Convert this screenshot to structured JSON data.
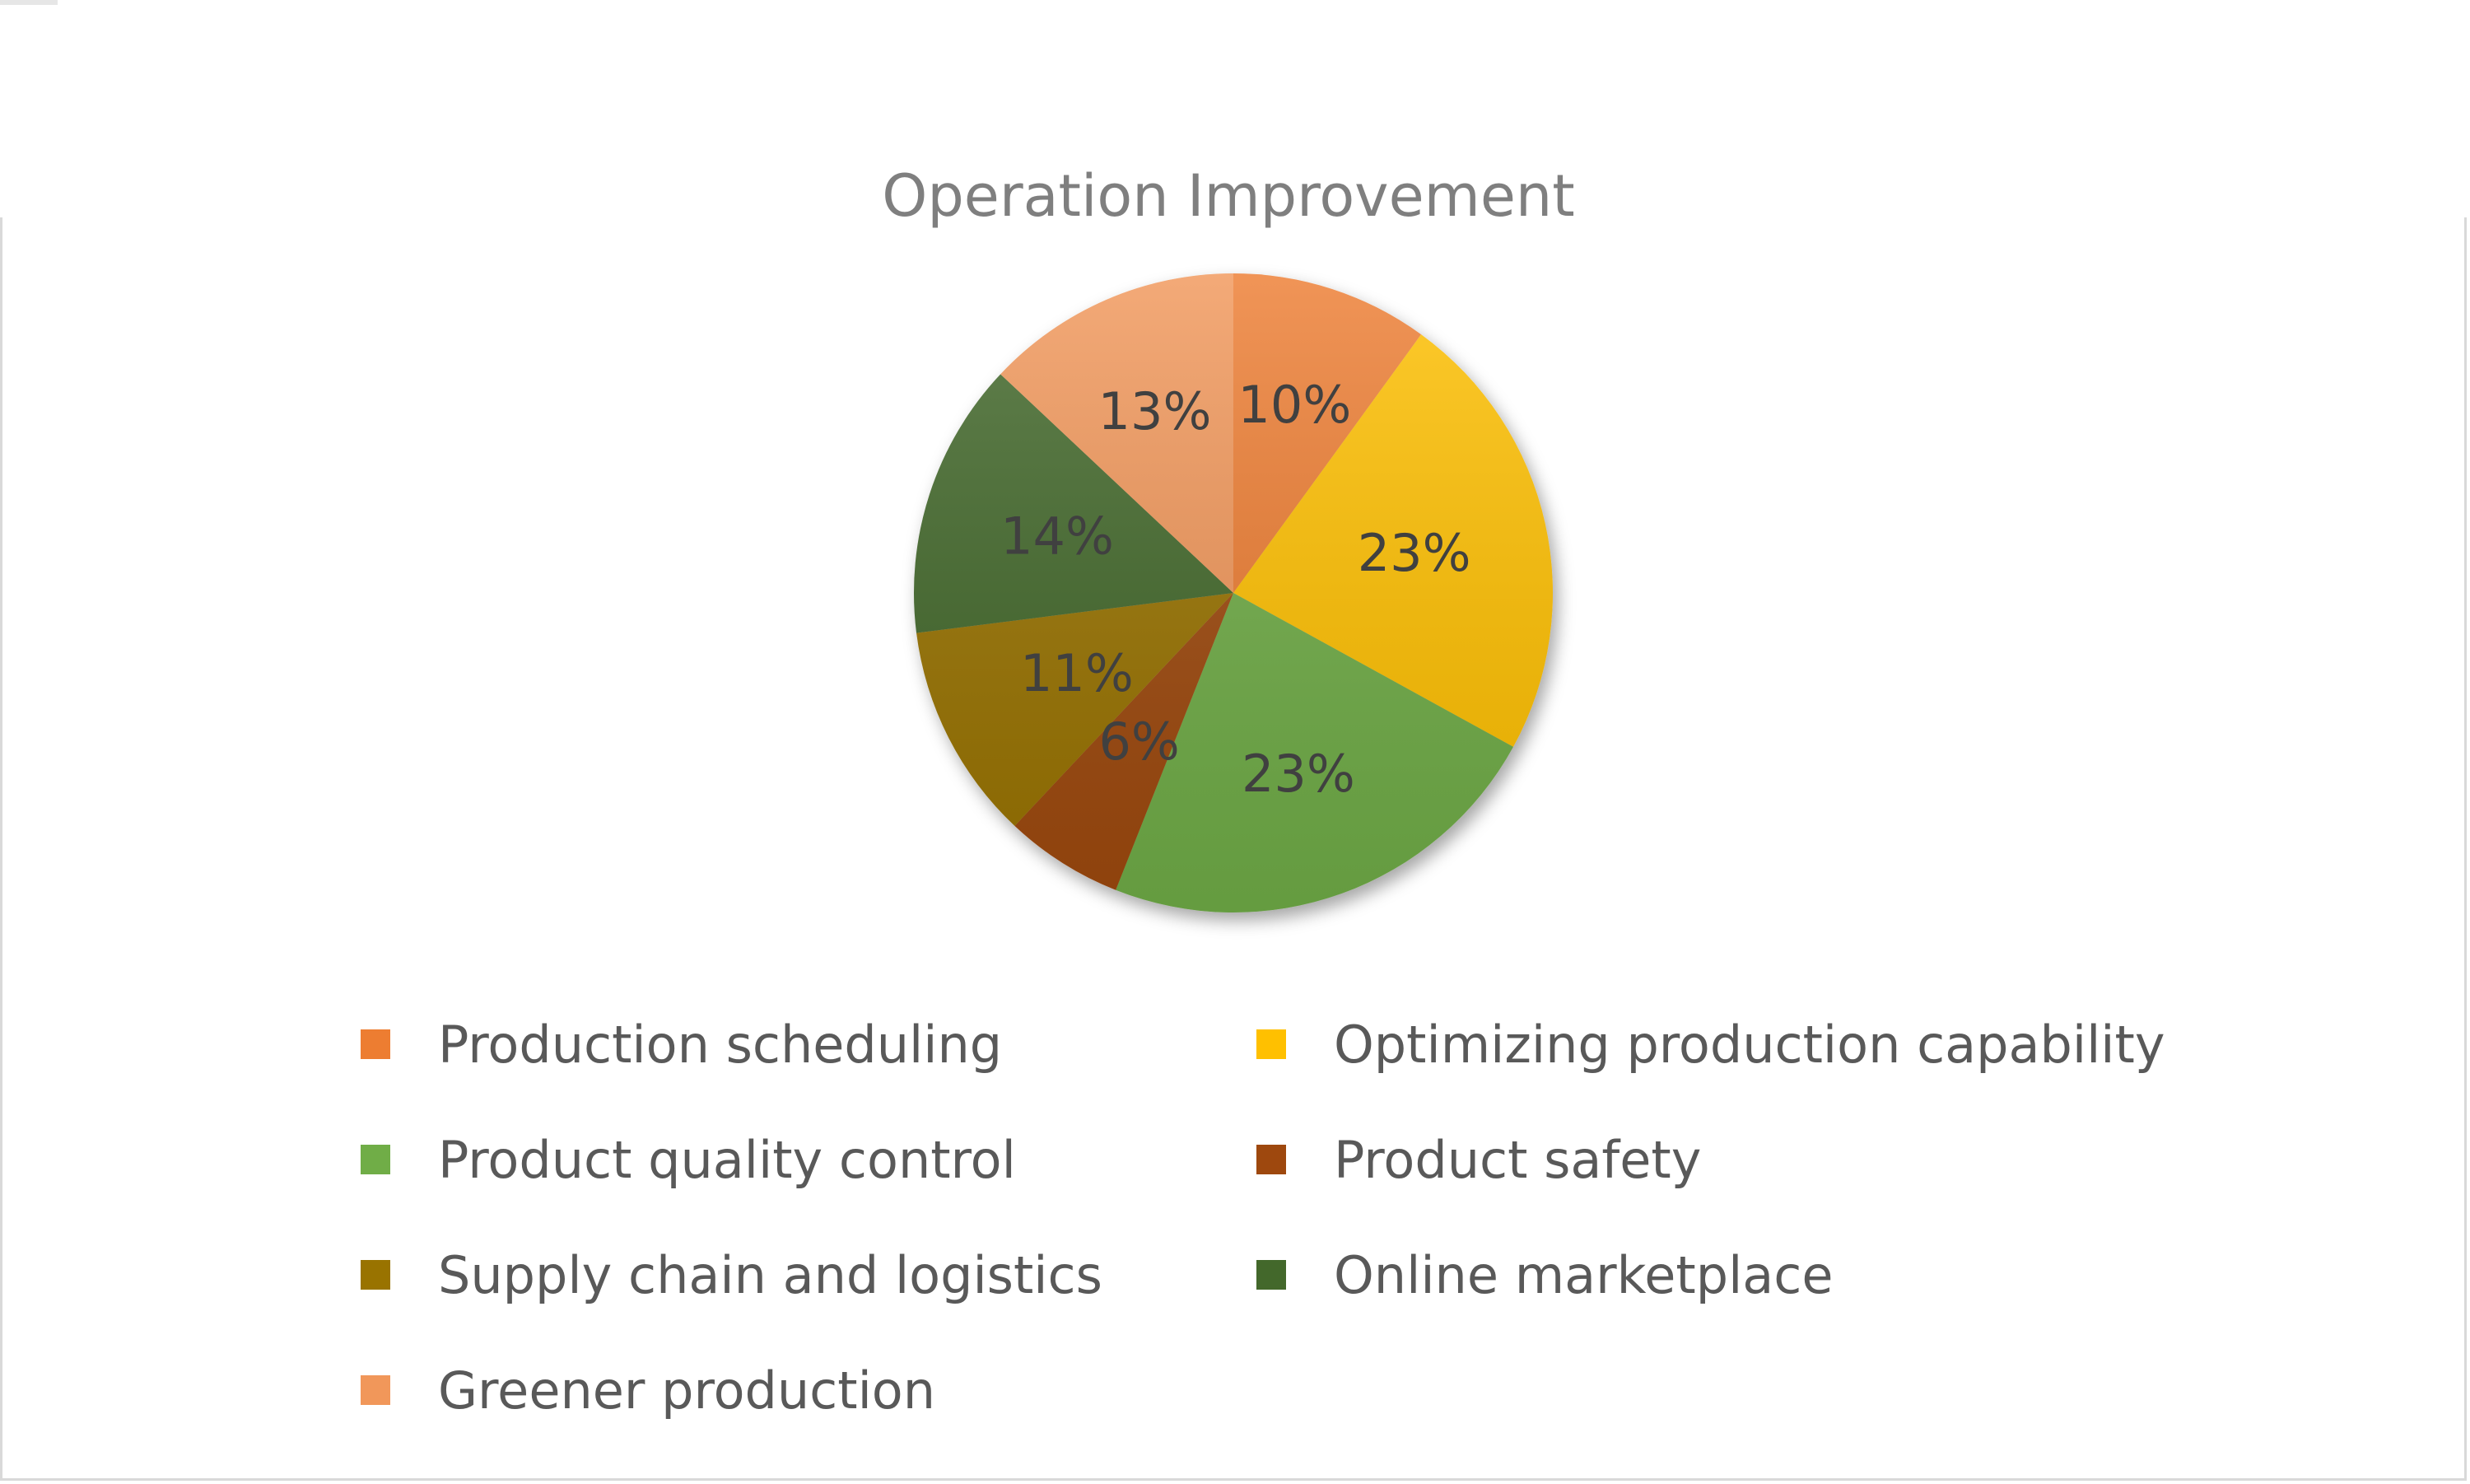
{
  "chart_data": {
    "type": "pie",
    "title": "Operation Improvement",
    "categories": [
      "Production scheduling",
      "Optimizing production capability",
      "Product quality control",
      "Product safety",
      "Supply chain and logistics",
      "Online marketplace",
      "Greener production"
    ],
    "values": [
      10,
      23,
      23,
      6,
      11,
      14,
      13
    ],
    "data_labels": [
      "10%",
      "23%",
      "23%",
      "6%",
      "11%",
      "14%",
      "13%"
    ],
    "colors": [
      "#ed7d31",
      "#ffc000",
      "#70ad47",
      "#9e480e",
      "#997300",
      "#43682b",
      "#f1975a"
    ],
    "legend_position": "bottom",
    "start_angle_deg": 0,
    "direction": "clockwise"
  }
}
